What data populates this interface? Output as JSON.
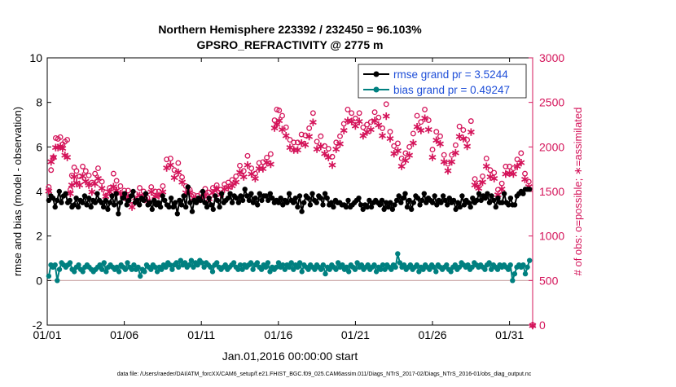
{
  "title_line1": "Northern Hemisphere 223392 / 232450 = 96.103%",
  "title_line2": "GPSRO_REFRACTIVITY @ 2775 m",
  "left_ylabel": "rmse and bias (model - observation)",
  "right_ylabel": "# of obs: o=possible; ∗=assimilated",
  "xlabel": "Jan.01,2016 00:00:00 start",
  "footer": "data file: /Users/raeder/DAI/ATM_forcXX/CAM6_setup/f.e21.FHIST_BGC.f09_025.CAM6assim.011/Diags_NTrS_2017-02/Diags_NTrS_2016-01/obs_diag_output.nc",
  "legend": {
    "rmse": "rmse grand pr = 3.5244",
    "bias": "bias grand pr = 0.49247"
  },
  "colors": {
    "rmse": "#000000",
    "bias": "#008080",
    "obs": "#d4145a",
    "zero_line": "#c8a0a0",
    "legend_text": "#1f4fd8"
  },
  "chart_data": {
    "type": "line",
    "xlim": [
      0,
      31.5
    ],
    "ylim_left": [
      -2,
      10
    ],
    "ylim_right": [
      0,
      3000
    ],
    "x_tick_values": [
      0,
      5,
      10,
      15,
      20,
      25,
      30
    ],
    "x_tick_labels": [
      "01/01",
      "01/06",
      "01/11",
      "01/16",
      "01/21",
      "01/26",
      "01/31"
    ],
    "y_left_ticks": [
      -2,
      0,
      2,
      4,
      6,
      8,
      10
    ],
    "y_right_ticks": [
      0,
      500,
      1000,
      1500,
      2000,
      2500,
      3000
    ],
    "rmse": [
      3.6,
      3.8,
      3.7,
      3.3,
      3.6,
      4.0,
      3.5,
      3.8,
      3.9,
      3.5,
      3.6,
      3.3,
      3.4,
      3.7,
      3.3,
      3.6,
      3.5,
      3.8,
      3.4,
      3.7,
      3.3,
      3.6,
      3.5,
      3.9,
      3.6,
      3.5,
      3.3,
      3.6,
      3.2,
      3.5,
      3.8,
      3.4,
      3.9,
      3.0,
      3.5,
      3.7,
      3.9,
      3.4,
      3.6,
      3.8,
      4.0,
      3.5,
      3.6,
      3.4,
      3.7,
      3.6,
      3.9,
      3.4,
      3.5,
      3.2,
      3.6,
      3.4,
      3.5,
      3.3,
      3.8,
      3.6,
      3.4,
      3.3,
      3.7,
      3.3,
      3.5,
      3.0,
      3.6,
      3.4,
      3.8,
      3.3,
      4.2,
      3.5,
      3.1,
      3.6,
      3.5,
      3.7,
      3.6,
      4.0,
      3.5,
      3.3,
      3.7,
      3.4,
      3.2,
      3.8,
      3.6,
      3.3,
      3.9,
      3.5,
      3.6,
      3.7,
      3.9,
      3.5,
      3.8,
      3.7,
      3.5,
      3.8,
      3.6,
      4.1,
      3.8,
      3.6,
      3.9,
      3.5,
      3.7,
      3.4,
      3.9,
      3.6,
      3.8,
      3.8,
      3.6,
      3.9,
      3.7,
      3.5,
      3.6,
      3.5,
      3.7,
      3.4,
      3.6,
      3.5,
      3.9,
      3.6,
      3.5,
      3.7,
      3.3,
      3.8,
      3.1,
      3.5,
      3.8,
      3.7,
      3.4,
      3.9,
      3.6,
      3.5,
      3.8,
      3.7,
      3.4,
      3.9,
      3.7,
      3.4,
      3.5,
      3.3,
      3.6,
      3.5,
      3.5,
      3.4,
      3.4,
      3.3,
      3.6,
      3.3,
      3.4,
      3.5,
      3.6,
      3.7,
      3.4,
      3.2,
      3.4,
      3.3,
      3.6,
      3.3,
      3.5,
      3.6,
      3.5,
      3.4,
      3.6,
      3.2,
      3.5,
      3.3,
      3.5,
      3.2,
      3.4,
      3.6,
      3.8,
      3.5,
      3.7,
      3.9,
      3.3,
      3.6,
      3.2,
      3.5,
      3.8,
      3.7,
      3.4,
      3.6,
      3.9,
      3.5,
      3.7,
      3.6,
      3.5,
      3.8,
      3.4,
      3.6,
      3.5,
      3.8,
      3.6,
      3.4,
      3.7,
      3.5,
      3.6,
      3.2,
      3.5,
      3.3,
      3.8,
      3.4,
      3.6,
      3.5,
      3.3,
      3.7,
      3.5,
      3.6,
      3.9,
      3.6,
      3.8,
      3.7,
      3.9,
      3.5,
      3.8,
      3.6,
      3.3,
      3.7,
      3.5,
      3.5,
      3.9,
      3.5,
      3.4,
      3.7,
      3.4,
      3.4,
      3.8,
      3.9,
      4.0,
      3.9,
      4.1,
      4.1,
      4.1
    ],
    "bias": [
      0.2,
      0.7,
      0.6,
      0.7,
      0.0,
      0.5,
      0.8,
      0.7,
      0.6,
      0.7,
      0.8,
      0.5,
      0.4,
      0.6,
      0.7,
      0.5,
      0.4,
      0.6,
      0.7,
      0.6,
      0.5,
      0.4,
      0.5,
      0.6,
      0.7,
      0.5,
      0.8,
      0.4,
      0.6,
      0.7,
      0.6,
      0.5,
      0.6,
      0.4,
      0.7,
      0.6,
      0.5,
      0.8,
      0.6,
      0.5,
      0.7,
      0.5,
      0.6,
      0.2,
      0.5,
      0.4,
      0.7,
      0.6,
      0.5,
      0.7,
      0.6,
      0.4,
      0.6,
      0.5,
      0.7,
      0.6,
      0.8,
      0.7,
      0.5,
      0.7,
      0.8,
      0.6,
      0.9,
      0.7,
      0.8,
      0.6,
      0.7,
      0.9,
      0.6,
      0.8,
      0.7,
      0.9,
      0.8,
      0.6,
      0.8,
      0.7,
      0.6,
      0.4,
      0.7,
      0.8,
      0.6,
      0.5,
      0.6,
      0.7,
      0.5,
      0.6,
      0.7,
      0.8,
      0.6,
      0.5,
      0.7,
      0.5,
      0.7,
      0.6,
      0.7,
      0.8,
      0.5,
      0.7,
      0.8,
      0.6,
      0.5,
      0.7,
      0.6,
      0.8,
      0.4,
      0.6,
      0.5,
      0.6,
      0.8,
      0.6,
      0.7,
      0.5,
      0.7,
      0.6,
      0.8,
      0.5,
      0.7,
      0.6,
      0.8,
      0.4,
      0.7,
      0.6,
      0.5,
      0.7,
      0.6,
      0.5,
      0.7,
      0.6,
      0.5,
      0.7,
      0.3,
      0.6,
      0.5,
      0.7,
      0.6,
      0.5,
      0.8,
      0.6,
      0.7,
      0.5,
      0.6,
      0.4,
      0.7,
      0.6,
      0.5,
      0.8,
      0.6,
      0.7,
      0.5,
      0.6,
      0.7,
      0.5,
      0.6,
      0.7,
      0.4,
      0.6,
      0.5,
      0.7,
      0.5,
      0.7,
      0.6,
      0.5,
      0.7,
      0.6,
      1.2,
      0.8,
      0.6,
      0.7,
      0.5,
      0.6,
      0.7,
      0.5,
      0.6,
      0.7,
      0.4,
      0.6,
      0.5,
      0.7,
      0.6,
      0.5,
      0.7,
      0.6,
      0.4,
      0.7,
      0.6,
      0.5,
      0.6,
      0.7,
      0.5,
      0.4,
      0.6,
      0.7,
      0.5,
      0.6,
      0.8,
      0.7,
      0.6,
      0.7,
      0.5,
      0.6,
      0.8,
      0.7,
      0.6,
      0.7,
      0.6,
      0.5,
      0.7,
      0.8,
      0.5,
      0.7,
      0.6,
      0.5,
      0.7,
      0.6,
      0.7,
      0.6,
      0.5,
      0.7,
      0.0,
      0.3,
      0.6,
      0.7,
      0.6,
      0.7,
      0.3,
      0.6,
      0.9
    ],
    "obs_possible": [
      [
        0.1,
        1550
      ],
      [
        0.25,
        1740
      ],
      [
        0.4,
        1880
      ],
      [
        0.55,
        2100
      ],
      [
        0.7,
        2090
      ],
      [
        0.85,
        2110
      ],
      [
        1.0,
        2030
      ],
      [
        1.15,
        2060
      ],
      [
        1.3,
        2080
      ],
      [
        1.5,
        1520
      ],
      [
        1.6,
        1680
      ],
      [
        1.75,
        1770
      ],
      [
        1.9,
        1730
      ],
      [
        2.1,
        1670
      ],
      [
        2.3,
        1780
      ],
      [
        2.5,
        1730
      ],
      [
        2.7,
        1680
      ],
      [
        2.9,
        1600
      ],
      [
        3.1,
        1700
      ],
      [
        3.3,
        1760
      ],
      [
        3.55,
        1610
      ],
      [
        3.8,
        1490
      ],
      [
        4.05,
        1540
      ],
      [
        4.3,
        1700
      ],
      [
        4.5,
        1620
      ],
      [
        4.75,
        1560
      ],
      [
        5.0,
        1510
      ],
      [
        5.25,
        1510
      ],
      [
        5.5,
        1350
      ],
      [
        5.75,
        1470
      ],
      [
        6.0,
        1540
      ],
      [
        6.25,
        1500
      ],
      [
        6.5,
        1430
      ],
      [
        6.75,
        1550
      ],
      [
        7.0,
        1500
      ],
      [
        7.25,
        1500
      ],
      [
        7.5,
        1560
      ],
      [
        7.75,
        1860
      ],
      [
        8.0,
        1870
      ],
      [
        8.25,
        1740
      ],
      [
        8.5,
        1820
      ],
      [
        8.75,
        1660
      ],
      [
        9.0,
        1560
      ],
      [
        9.25,
        1520
      ],
      [
        9.5,
        1460
      ],
      [
        9.75,
        1450
      ],
      [
        10.0,
        1480
      ],
      [
        10.25,
        1530
      ],
      [
        10.5,
        1490
      ],
      [
        10.75,
        1540
      ],
      [
        11.0,
        1570
      ],
      [
        11.25,
        1520
      ],
      [
        11.5,
        1580
      ],
      [
        11.75,
        1600
      ],
      [
        12.0,
        1630
      ],
      [
        12.25,
        1670
      ],
      [
        12.5,
        1790
      ],
      [
        12.75,
        1730
      ],
      [
        13.0,
        1900
      ],
      [
        13.25,
        1760
      ],
      [
        13.5,
        1700
      ],
      [
        13.75,
        1820
      ],
      [
        14.0,
        1830
      ],
      [
        14.25,
        1880
      ],
      [
        14.5,
        1920
      ],
      [
        14.75,
        2300
      ],
      [
        14.9,
        2420
      ],
      [
        15.05,
        2410
      ],
      [
        15.25,
        2350
      ],
      [
        15.5,
        2220
      ],
      [
        15.75,
        2080
      ],
      [
        16.0,
        2050
      ],
      [
        16.25,
        2050
      ],
      [
        16.5,
        2140
      ],
      [
        16.75,
        2130
      ],
      [
        17.0,
        2210
      ],
      [
        17.25,
        2380
      ],
      [
        17.5,
        2060
      ],
      [
        17.75,
        2120
      ],
      [
        18.0,
        2010
      ],
      [
        18.25,
        1980
      ],
      [
        18.5,
        1890
      ],
      [
        18.75,
        2050
      ],
      [
        19.0,
        2120
      ],
      [
        19.25,
        2260
      ],
      [
        19.5,
        2420
      ],
      [
        19.75,
        2380
      ],
      [
        20.0,
        2320
      ],
      [
        20.25,
        2380
      ],
      [
        20.5,
        2220
      ],
      [
        20.75,
        2250
      ],
      [
        21.0,
        2280
      ],
      [
        21.25,
        2390
      ],
      [
        21.5,
        2330
      ],
      [
        21.75,
        2210
      ],
      [
        22.0,
        2480
      ],
      [
        22.25,
        2170
      ],
      [
        22.5,
        2010
      ],
      [
        22.75,
        2040
      ],
      [
        23.0,
        1870
      ],
      [
        23.25,
        1930
      ],
      [
        23.5,
        2000
      ],
      [
        23.75,
        2150
      ],
      [
        24.0,
        2350
      ],
      [
        24.25,
        2280
      ],
      [
        24.5,
        2420
      ],
      [
        24.75,
        2300
      ],
      [
        25.0,
        1970
      ],
      [
        25.25,
        2170
      ],
      [
        25.5,
        2120
      ],
      [
        25.75,
        1910
      ],
      [
        26.0,
        1810
      ],
      [
        26.25,
        1910
      ],
      [
        26.5,
        2020
      ],
      [
        26.75,
        2230
      ],
      [
        27.0,
        2190
      ],
      [
        27.25,
        2080
      ],
      [
        27.5,
        2290
      ],
      [
        27.75,
        1640
      ],
      [
        28.0,
        1590
      ],
      [
        28.25,
        1670
      ],
      [
        28.5,
        1870
      ],
      [
        28.75,
        1740
      ],
      [
        29.0,
        1710
      ],
      [
        29.25,
        1520
      ],
      [
        29.5,
        1590
      ],
      [
        29.75,
        1780
      ],
      [
        30.0,
        1780
      ],
      [
        30.25,
        1760
      ],
      [
        30.5,
        1860
      ],
      [
        30.75,
        1930
      ],
      [
        31.0,
        1700
      ],
      [
        31.25,
        1610
      ]
    ],
    "obs_assimilated": [
      [
        0.1,
        1510
      ],
      [
        0.25,
        1840
      ],
      [
        0.4,
        1890
      ],
      [
        0.55,
        2000
      ],
      [
        0.7,
        2000
      ],
      [
        0.85,
        2010
      ],
      [
        1.0,
        1990
      ],
      [
        1.15,
        1910
      ],
      [
        1.3,
        1890
      ],
      [
        1.5,
        1480
      ],
      [
        1.6,
        1580
      ],
      [
        1.75,
        1670
      ],
      [
        1.9,
        1600
      ],
      [
        2.1,
        1580
      ],
      [
        2.3,
        1680
      ],
      [
        2.5,
        1620
      ],
      [
        2.7,
        1580
      ],
      [
        2.9,
        1500
      ],
      [
        3.1,
        1590
      ],
      [
        3.3,
        1650
      ],
      [
        3.55,
        1540
      ],
      [
        3.8,
        1450
      ],
      [
        4.05,
        1500
      ],
      [
        4.3,
        1560
      ],
      [
        4.5,
        1520
      ],
      [
        4.75,
        1480
      ],
      [
        5.0,
        1440
      ],
      [
        5.25,
        1440
      ],
      [
        5.5,
        1330
      ],
      [
        5.75,
        1400
      ],
      [
        6.0,
        1460
      ],
      [
        6.25,
        1450
      ],
      [
        6.5,
        1400
      ],
      [
        6.75,
        1500
      ],
      [
        7.0,
        1450
      ],
      [
        7.25,
        1460
      ],
      [
        7.5,
        1500
      ],
      [
        7.75,
        1770
      ],
      [
        8.0,
        1800
      ],
      [
        8.25,
        1660
      ],
      [
        8.5,
        1720
      ],
      [
        8.75,
        1610
      ],
      [
        9.0,
        1490
      ],
      [
        9.25,
        1490
      ],
      [
        9.5,
        1430
      ],
      [
        9.75,
        1400
      ],
      [
        10.0,
        1430
      ],
      [
        10.25,
        1470
      ],
      [
        10.5,
        1420
      ],
      [
        10.75,
        1490
      ],
      [
        11.0,
        1530
      ],
      [
        11.25,
        1470
      ],
      [
        11.5,
        1530
      ],
      [
        11.75,
        1550
      ],
      [
        12.0,
        1570
      ],
      [
        12.25,
        1610
      ],
      [
        12.5,
        1720
      ],
      [
        12.75,
        1670
      ],
      [
        13.0,
        1800
      ],
      [
        13.25,
        1700
      ],
      [
        13.5,
        1650
      ],
      [
        13.75,
        1760
      ],
      [
        14.0,
        1760
      ],
      [
        14.25,
        1830
      ],
      [
        14.5,
        1810
      ],
      [
        14.75,
        2220
      ],
      [
        14.9,
        2260
      ],
      [
        15.05,
        2300
      ],
      [
        15.25,
        2200
      ],
      [
        15.5,
        2130
      ],
      [
        15.75,
        2000
      ],
      [
        16.0,
        1970
      ],
      [
        16.25,
        1970
      ],
      [
        16.5,
        2050
      ],
      [
        16.75,
        2030
      ],
      [
        17.0,
        2120
      ],
      [
        17.25,
        2280
      ],
      [
        17.5,
        1980
      ],
      [
        17.75,
        2010
      ],
      [
        18.0,
        1930
      ],
      [
        18.25,
        1890
      ],
      [
        18.5,
        1800
      ],
      [
        18.75,
        1980
      ],
      [
        19.0,
        2040
      ],
      [
        19.25,
        2190
      ],
      [
        19.5,
        2300
      ],
      [
        19.75,
        2290
      ],
      [
        20.0,
        2240
      ],
      [
        20.25,
        2290
      ],
      [
        20.5,
        2130
      ],
      [
        20.75,
        2170
      ],
      [
        21.0,
        2200
      ],
      [
        21.25,
        2300
      ],
      [
        21.5,
        2250
      ],
      [
        21.75,
        2130
      ],
      [
        22.0,
        2350
      ],
      [
        22.25,
        2100
      ],
      [
        22.5,
        1930
      ],
      [
        22.75,
        1960
      ],
      [
        23.0,
        1790
      ],
      [
        23.25,
        1850
      ],
      [
        23.5,
        1910
      ],
      [
        23.75,
        2050
      ],
      [
        24.0,
        2230
      ],
      [
        24.25,
        2190
      ],
      [
        24.5,
        2330
      ],
      [
        24.75,
        2200
      ],
      [
        25.0,
        1890
      ],
      [
        25.25,
        2080
      ],
      [
        25.5,
        2040
      ],
      [
        25.75,
        1840
      ],
      [
        26.0,
        1740
      ],
      [
        26.25,
        1840
      ],
      [
        26.5,
        1940
      ],
      [
        26.75,
        2120
      ],
      [
        27.0,
        2100
      ],
      [
        27.25,
        2010
      ],
      [
        27.5,
        2170
      ],
      [
        27.75,
        1580
      ],
      [
        28.0,
        1540
      ],
      [
        28.25,
        1610
      ],
      [
        28.5,
        1790
      ],
      [
        28.75,
        1670
      ],
      [
        29.0,
        1650
      ],
      [
        29.25,
        1470
      ],
      [
        29.5,
        1530
      ],
      [
        29.75,
        1700
      ],
      [
        30.0,
        1710
      ],
      [
        30.25,
        1700
      ],
      [
        30.5,
        1790
      ],
      [
        30.75,
        1830
      ],
      [
        31.0,
        1640
      ],
      [
        31.25,
        1560
      ]
    ],
    "obs_zero_markers": [
      31.5
    ]
  }
}
